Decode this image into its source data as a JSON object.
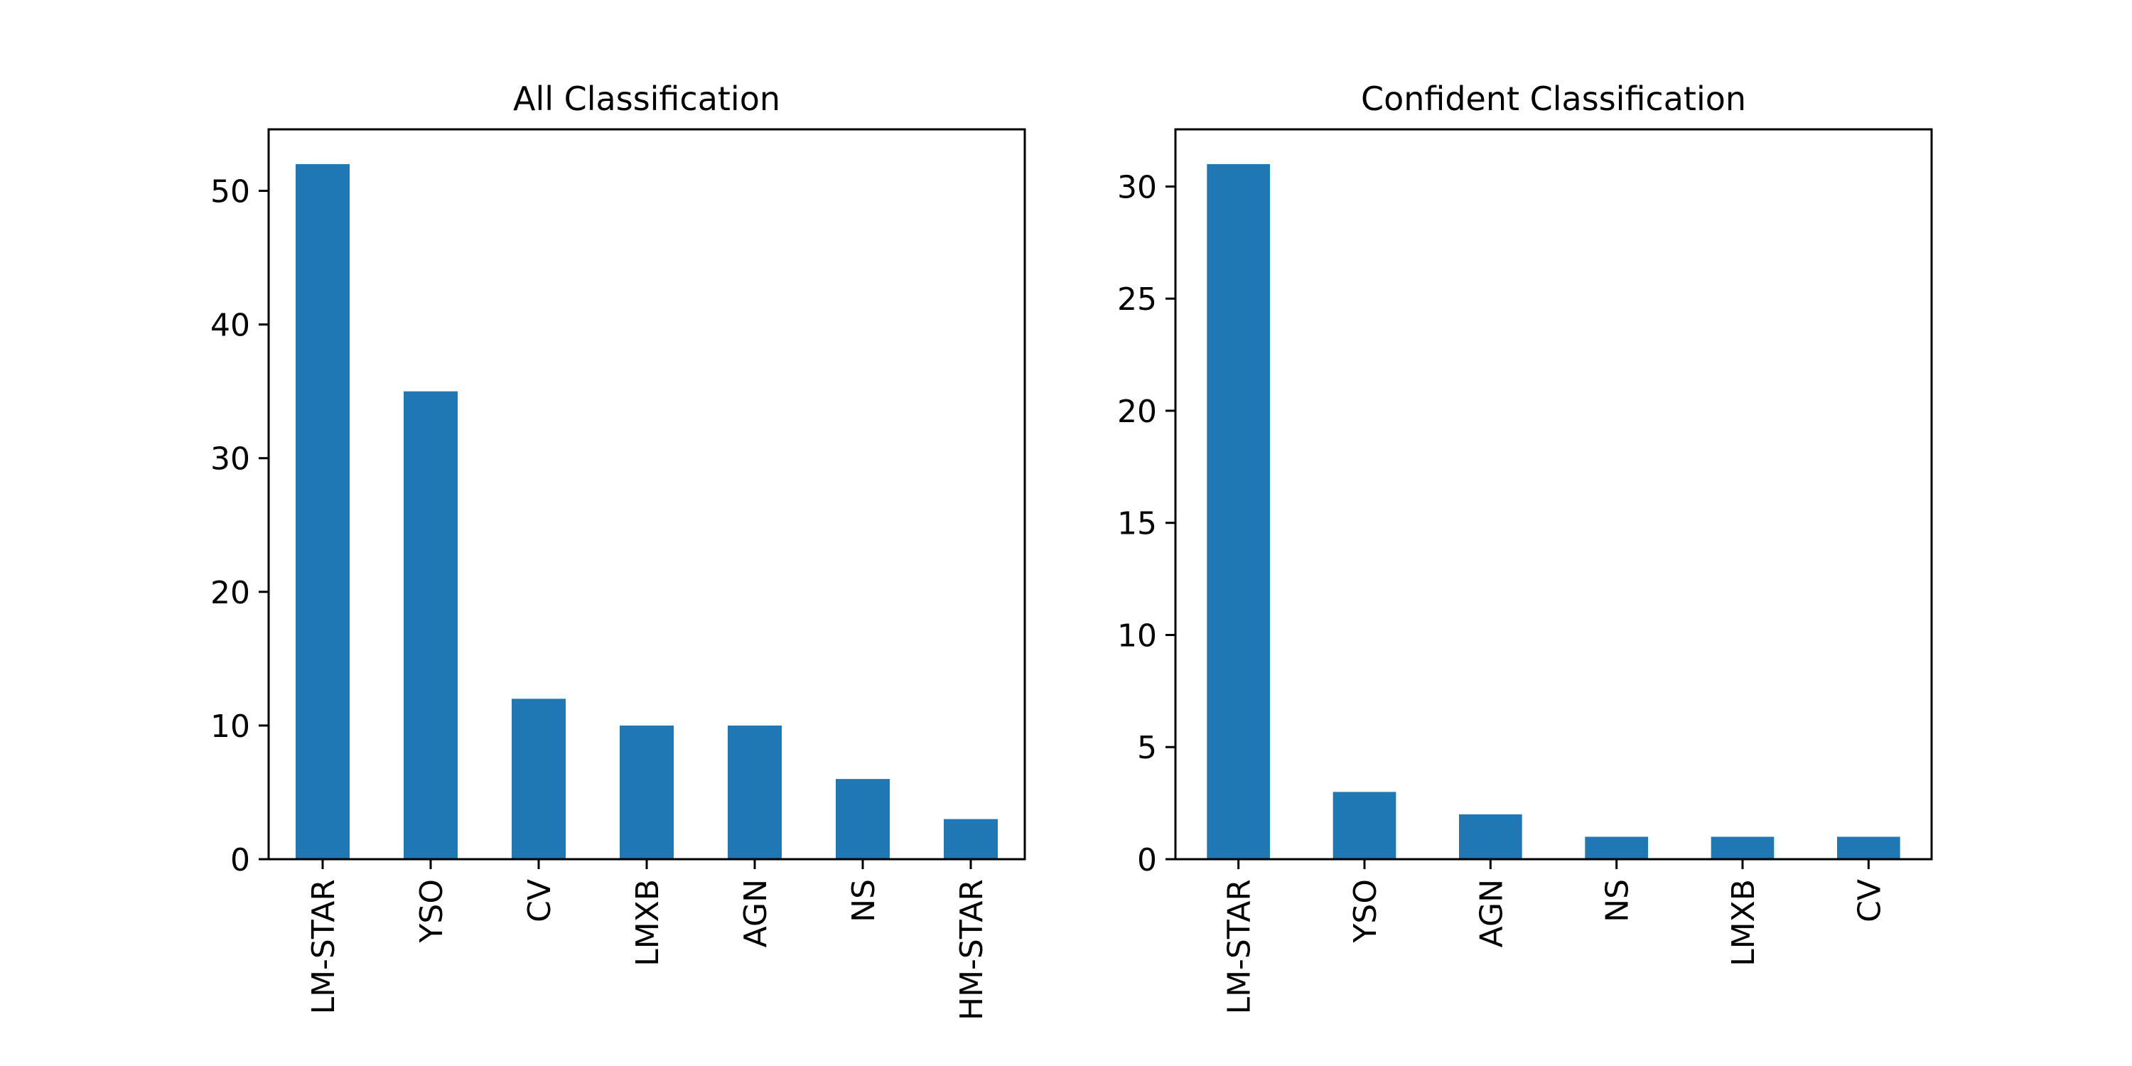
{
  "chart_data": [
    {
      "type": "bar",
      "title": "All Classification",
      "xlabel": "",
      "ylabel": "",
      "categories": [
        "LM-STAR",
        "YSO",
        "CV",
        "LMXB",
        "AGN",
        "NS",
        "HM-STAR"
      ],
      "values": [
        52,
        35,
        12,
        10,
        10,
        6,
        3
      ],
      "ylim": [
        0,
        54.6
      ],
      "yticks": [
        0,
        10,
        20,
        30,
        40,
        50
      ],
      "bar_color": "#1f77b4",
      "grid": false,
      "legend": "none"
    },
    {
      "type": "bar",
      "title": "Confident Classification",
      "xlabel": "",
      "ylabel": "",
      "categories": [
        "LM-STAR",
        "YSO",
        "AGN",
        "NS",
        "LMXB",
        "CV"
      ],
      "values": [
        31,
        3,
        2,
        1,
        1,
        1
      ],
      "ylim": [
        0,
        32.55
      ],
      "yticks": [
        0,
        5,
        10,
        15,
        20,
        25,
        30
      ],
      "bar_color": "#1f77b4",
      "grid": false,
      "legend": "none"
    }
  ]
}
